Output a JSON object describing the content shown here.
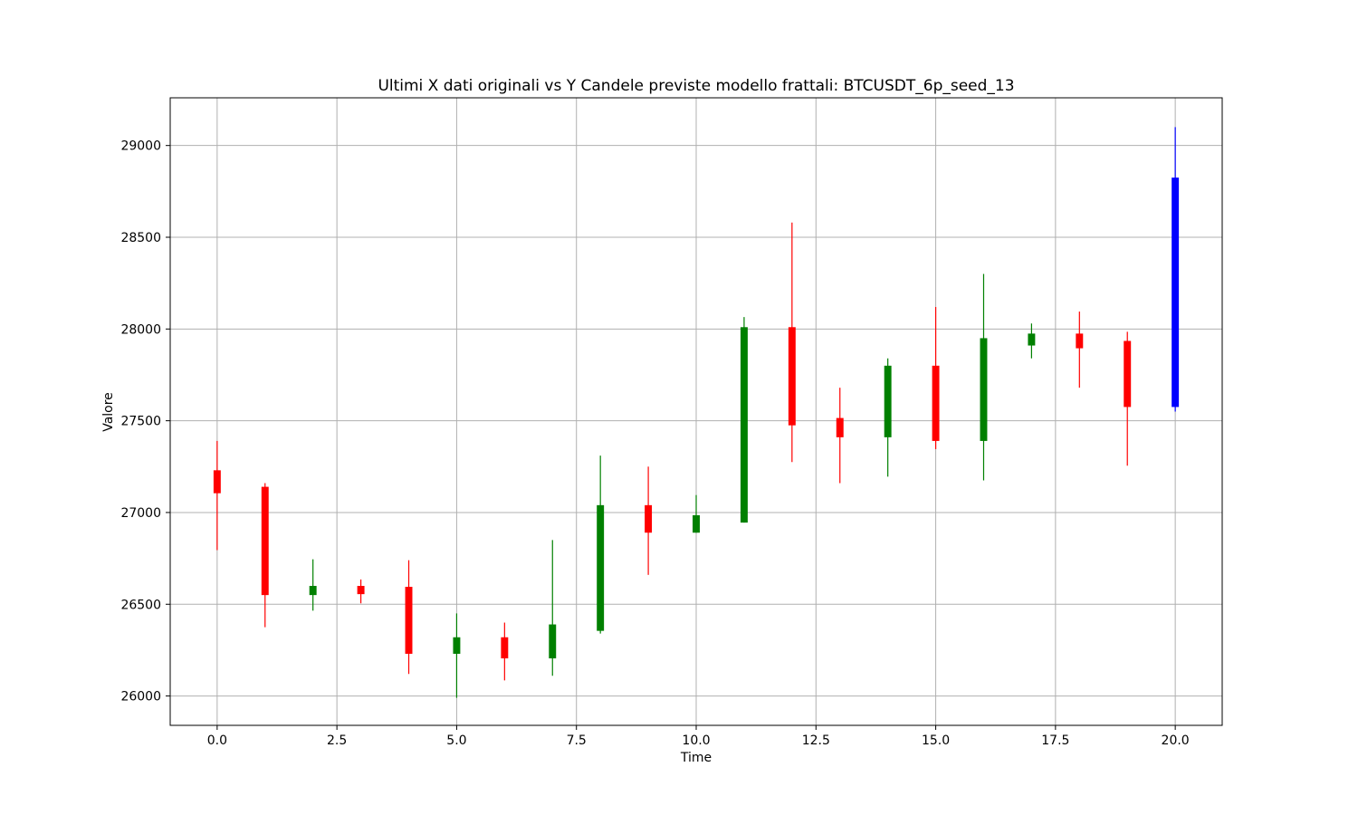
{
  "chart_data": {
    "type": "candlestick",
    "title": "Ultimi X dati originali vs Y Candele previste modello frattali: BTCUSDT_6p_seed_13",
    "xlabel": "Time",
    "ylabel": "Valore",
    "xlim": [
      -0.98,
      20.98
    ],
    "ylim": [
      25840,
      29260
    ],
    "x_ticks": [
      0.0,
      2.5,
      5.0,
      7.5,
      10.0,
      12.5,
      15.0,
      17.5,
      20.0
    ],
    "x_tick_labels": [
      "0.0",
      "2.5",
      "5.0",
      "7.5",
      "10.0",
      "12.5",
      "15.0",
      "17.5",
      "20.0"
    ],
    "y_ticks": [
      26000,
      26500,
      27000,
      27500,
      28000,
      28500,
      29000
    ],
    "y_tick_labels": [
      "26000",
      "26500",
      "27000",
      "27500",
      "28000",
      "28500",
      "29000"
    ],
    "grid": true,
    "colors": {
      "up": "#008000",
      "down": "#ff0000",
      "predicted": "#0000ff"
    },
    "candles": [
      {
        "x": 0,
        "open": 27230,
        "close": 27105,
        "high": 27390,
        "low": 26795,
        "kind": "down"
      },
      {
        "x": 1,
        "open": 27140,
        "close": 26550,
        "high": 27160,
        "low": 26375,
        "kind": "down"
      },
      {
        "x": 2,
        "open": 26550,
        "close": 26600,
        "high": 26745,
        "low": 26465,
        "kind": "up"
      },
      {
        "x": 3,
        "open": 26600,
        "close": 26555,
        "high": 26635,
        "low": 26505,
        "kind": "down"
      },
      {
        "x": 4,
        "open": 26595,
        "close": 26230,
        "high": 26740,
        "low": 26120,
        "kind": "down"
      },
      {
        "x": 5,
        "open": 26230,
        "close": 26320,
        "high": 26450,
        "low": 25990,
        "kind": "up"
      },
      {
        "x": 6,
        "open": 26320,
        "close": 26205,
        "high": 26400,
        "low": 26085,
        "kind": "down"
      },
      {
        "x": 7,
        "open": 26205,
        "close": 26390,
        "high": 26850,
        "low": 26110,
        "kind": "up"
      },
      {
        "x": 8,
        "open": 26355,
        "close": 27040,
        "high": 27310,
        "low": 26340,
        "kind": "up"
      },
      {
        "x": 9,
        "open": 27040,
        "close": 26890,
        "high": 27250,
        "low": 26660,
        "kind": "down"
      },
      {
        "x": 10,
        "open": 26890,
        "close": 26985,
        "high": 27095,
        "low": 26890,
        "kind": "up"
      },
      {
        "x": 11,
        "open": 26945,
        "close": 28010,
        "high": 28065,
        "low": 26945,
        "kind": "up"
      },
      {
        "x": 12,
        "open": 28010,
        "close": 27475,
        "high": 28580,
        "low": 27275,
        "kind": "down"
      },
      {
        "x": 13,
        "open": 27515,
        "close": 27410,
        "high": 27680,
        "low": 27160,
        "kind": "down"
      },
      {
        "x": 14,
        "open": 27410,
        "close": 27800,
        "high": 27840,
        "low": 27195,
        "kind": "up"
      },
      {
        "x": 15,
        "open": 27800,
        "close": 27390,
        "high": 28120,
        "low": 27345,
        "kind": "down"
      },
      {
        "x": 16,
        "open": 27390,
        "close": 27950,
        "high": 28300,
        "low": 27175,
        "kind": "up"
      },
      {
        "x": 17,
        "open": 27910,
        "close": 27975,
        "high": 28030,
        "low": 27840,
        "kind": "up"
      },
      {
        "x": 18,
        "open": 27975,
        "close": 27895,
        "high": 28095,
        "low": 27680,
        "kind": "down"
      },
      {
        "x": 19,
        "open": 27935,
        "close": 27575,
        "high": 27985,
        "low": 27255,
        "kind": "down"
      },
      {
        "x": 20,
        "open": 27575,
        "close": 28825,
        "high": 29100,
        "low": 27550,
        "kind": "predicted"
      }
    ]
  }
}
